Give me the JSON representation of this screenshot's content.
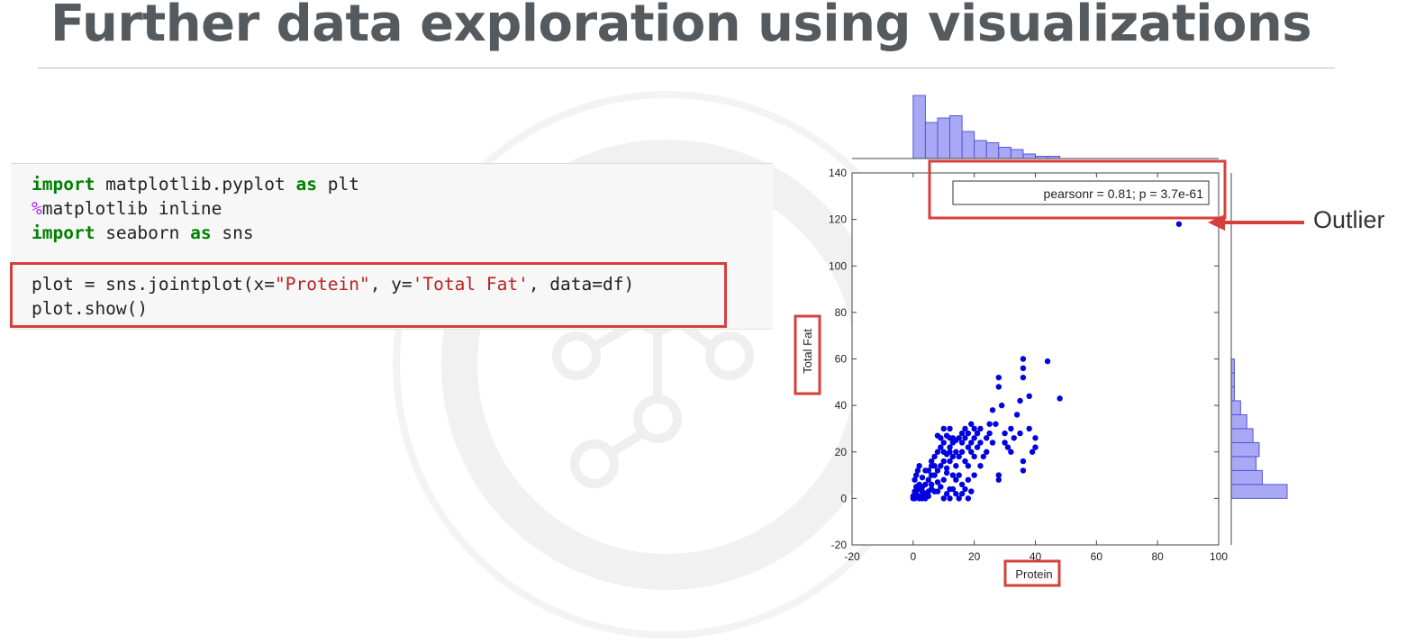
{
  "slide": {
    "title": "Further data exploration using visualizations",
    "annotation_label": "Outlier"
  },
  "code": {
    "lines": [
      "import matplotlib.pyplot as plt",
      "%matplotlib inline",
      "import seaborn as sns",
      "plot = sns.jointplot(x=\"Protein\", y='Total Fat', data=df)",
      "plot.show()"
    ],
    "l1_kw": "import",
    "l1_mod": " matplotlib.pyplot ",
    "l1_as": "as",
    "l1_alias": " plt",
    "l2_pct": "%",
    "l2_rest": "matplotlib inline",
    "l3_kw": "import",
    "l3_mod": " seaborn ",
    "l3_as": "as",
    "l3_alias": " sns",
    "l4_a": "plot = sns.jointplot(x=",
    "l4_s1": "\"Protein\"",
    "l4_b": ", y=",
    "l4_s2": "'Total Fat'",
    "l4_c": ", data=df)",
    "l5": "plot.show()"
  },
  "colors": {
    "point": "#0000e0",
    "hist_fill": "#a8a8f4",
    "hist_edge": "#5555d8",
    "highlight": "#d6403c"
  },
  "chart_data": {
    "type": "scatter",
    "xlabel": "Protein",
    "ylabel": "Total Fat",
    "xlim": [
      -20,
      100
    ],
    "ylim": [
      -20,
      140
    ],
    "xticks": [
      -20,
      0,
      20,
      40,
      60,
      80,
      100
    ],
    "yticks": [
      -20,
      0,
      20,
      40,
      60,
      80,
      100,
      120,
      140
    ],
    "annotation": "pearsonr = 0.81; p = 3.7e-61",
    "grid": false,
    "legend": "top-right",
    "points": [
      [
        0,
        0
      ],
      [
        0.5,
        0
      ],
      [
        1,
        0.5
      ],
      [
        1.5,
        1
      ],
      [
        2,
        0
      ],
      [
        2.5,
        1
      ],
      [
        3,
        0
      ],
      [
        0,
        1
      ],
      [
        1,
        2
      ],
      [
        0.5,
        3
      ],
      [
        2,
        4
      ],
      [
        3,
        1
      ],
      [
        4,
        2
      ],
      [
        1,
        5
      ],
      [
        2,
        6
      ],
      [
        0.5,
        8
      ],
      [
        1,
        10
      ],
      [
        1.5,
        12
      ],
      [
        2,
        14
      ],
      [
        3,
        3
      ],
      [
        4,
        0
      ],
      [
        5,
        1
      ],
      [
        4,
        6
      ],
      [
        5,
        8
      ],
      [
        3,
        9
      ],
      [
        6,
        4
      ],
      [
        5,
        12
      ],
      [
        6,
        14
      ],
      [
        7,
        10
      ],
      [
        6,
        16
      ],
      [
        7,
        18
      ],
      [
        8,
        7
      ],
      [
        8,
        12
      ],
      [
        9,
        14
      ],
      [
        8,
        20
      ],
      [
        9,
        22
      ],
      [
        10,
        16
      ],
      [
        10,
        0
      ],
      [
        11,
        2
      ],
      [
        12,
        4
      ],
      [
        12,
        0
      ],
      [
        10,
        8
      ],
      [
        11,
        11
      ],
      [
        12,
        16
      ],
      [
        13,
        18
      ],
      [
        14,
        20
      ],
      [
        12,
        22
      ],
      [
        13,
        24
      ],
      [
        14,
        14
      ],
      [
        15,
        10
      ],
      [
        15,
        18
      ],
      [
        16,
        20
      ],
      [
        16,
        24
      ],
      [
        17,
        26
      ],
      [
        17,
        16
      ],
      [
        18,
        14
      ],
      [
        18,
        22
      ],
      [
        19,
        24
      ],
      [
        19,
        20
      ],
      [
        20,
        26
      ],
      [
        20,
        18
      ],
      [
        21,
        28
      ],
      [
        21,
        22
      ],
      [
        22,
        24
      ],
      [
        22,
        30
      ],
      [
        19,
        32
      ],
      [
        20,
        30
      ],
      [
        18,
        28
      ],
      [
        17,
        30
      ],
      [
        16,
        28
      ],
      [
        15,
        26
      ],
      [
        14,
        25
      ],
      [
        13,
        26
      ],
      [
        12,
        26
      ],
      [
        11,
        27
      ],
      [
        10,
        24
      ],
      [
        9,
        26
      ],
      [
        8,
        27
      ],
      [
        10,
        30
      ],
      [
        12,
        30
      ],
      [
        14,
        8
      ],
      [
        13,
        4
      ],
      [
        14,
        2
      ],
      [
        15,
        0
      ],
      [
        16,
        6
      ],
      [
        16,
        2
      ],
      [
        17,
        4
      ],
      [
        18,
        8
      ],
      [
        18,
        0
      ],
      [
        19,
        3
      ],
      [
        20,
        10
      ],
      [
        22,
        14
      ],
      [
        23,
        18
      ],
      [
        24,
        20
      ],
      [
        24,
        26
      ],
      [
        25,
        28
      ],
      [
        26,
        24
      ],
      [
        27,
        32
      ],
      [
        25,
        32
      ],
      [
        26,
        38
      ],
      [
        28,
        48
      ],
      [
        28,
        52
      ],
      [
        29,
        40
      ],
      [
        28,
        10
      ],
      [
        28,
        8
      ],
      [
        30,
        28
      ],
      [
        30,
        24
      ],
      [
        31,
        22
      ],
      [
        32,
        30
      ],
      [
        32,
        20
      ],
      [
        33,
        26
      ],
      [
        34,
        36
      ],
      [
        35,
        42
      ],
      [
        35,
        28
      ],
      [
        36,
        16
      ],
      [
        36,
        12
      ],
      [
        36,
        52
      ],
      [
        36,
        56
      ],
      [
        36,
        60
      ],
      [
        38,
        44
      ],
      [
        38,
        30
      ],
      [
        39,
        20
      ],
      [
        40,
        22
      ],
      [
        40,
        26
      ],
      [
        44,
        59
      ],
      [
        48,
        43
      ],
      [
        10,
        20
      ],
      [
        11,
        19
      ],
      [
        12,
        20
      ],
      [
        7,
        14
      ],
      [
        6,
        10
      ],
      [
        4,
        12
      ],
      [
        3,
        5
      ],
      [
        5,
        3
      ],
      [
        6,
        6
      ],
      [
        7,
        3
      ],
      [
        9,
        5
      ],
      [
        8,
        3
      ],
      [
        13,
        10
      ],
      [
        11,
        13
      ],
      [
        87,
        118
      ]
    ],
    "x_marginal": [
      {
        "bin": [
          0,
          4
        ],
        "count": 28
      },
      {
        "bin": [
          4,
          8
        ],
        "count": 16
      },
      {
        "bin": [
          8,
          12
        ],
        "count": 18
      },
      {
        "bin": [
          12,
          16
        ],
        "count": 19
      },
      {
        "bin": [
          16,
          20
        ],
        "count": 12
      },
      {
        "bin": [
          20,
          24
        ],
        "count": 8
      },
      {
        "bin": [
          24,
          28
        ],
        "count": 7
      },
      {
        "bin": [
          28,
          32
        ],
        "count": 5
      },
      {
        "bin": [
          32,
          36
        ],
        "count": 4
      },
      {
        "bin": [
          36,
          40
        ],
        "count": 2
      },
      {
        "bin": [
          40,
          44
        ],
        "count": 1
      },
      {
        "bin": [
          44,
          48
        ],
        "count": 1
      }
    ],
    "y_marginal": [
      {
        "bin": [
          0,
          6
        ],
        "count": 18
      },
      {
        "bin": [
          6,
          12
        ],
        "count": 10
      },
      {
        "bin": [
          12,
          18
        ],
        "count": 8
      },
      {
        "bin": [
          18,
          24
        ],
        "count": 9
      },
      {
        "bin": [
          24,
          30
        ],
        "count": 7
      },
      {
        "bin": [
          30,
          36
        ],
        "count": 5
      },
      {
        "bin": [
          36,
          42
        ],
        "count": 3
      },
      {
        "bin": [
          42,
          48
        ],
        "count": 1
      },
      {
        "bin": [
          48,
          54
        ],
        "count": 1
      },
      {
        "bin": [
          54,
          60
        ],
        "count": 1
      }
    ]
  }
}
